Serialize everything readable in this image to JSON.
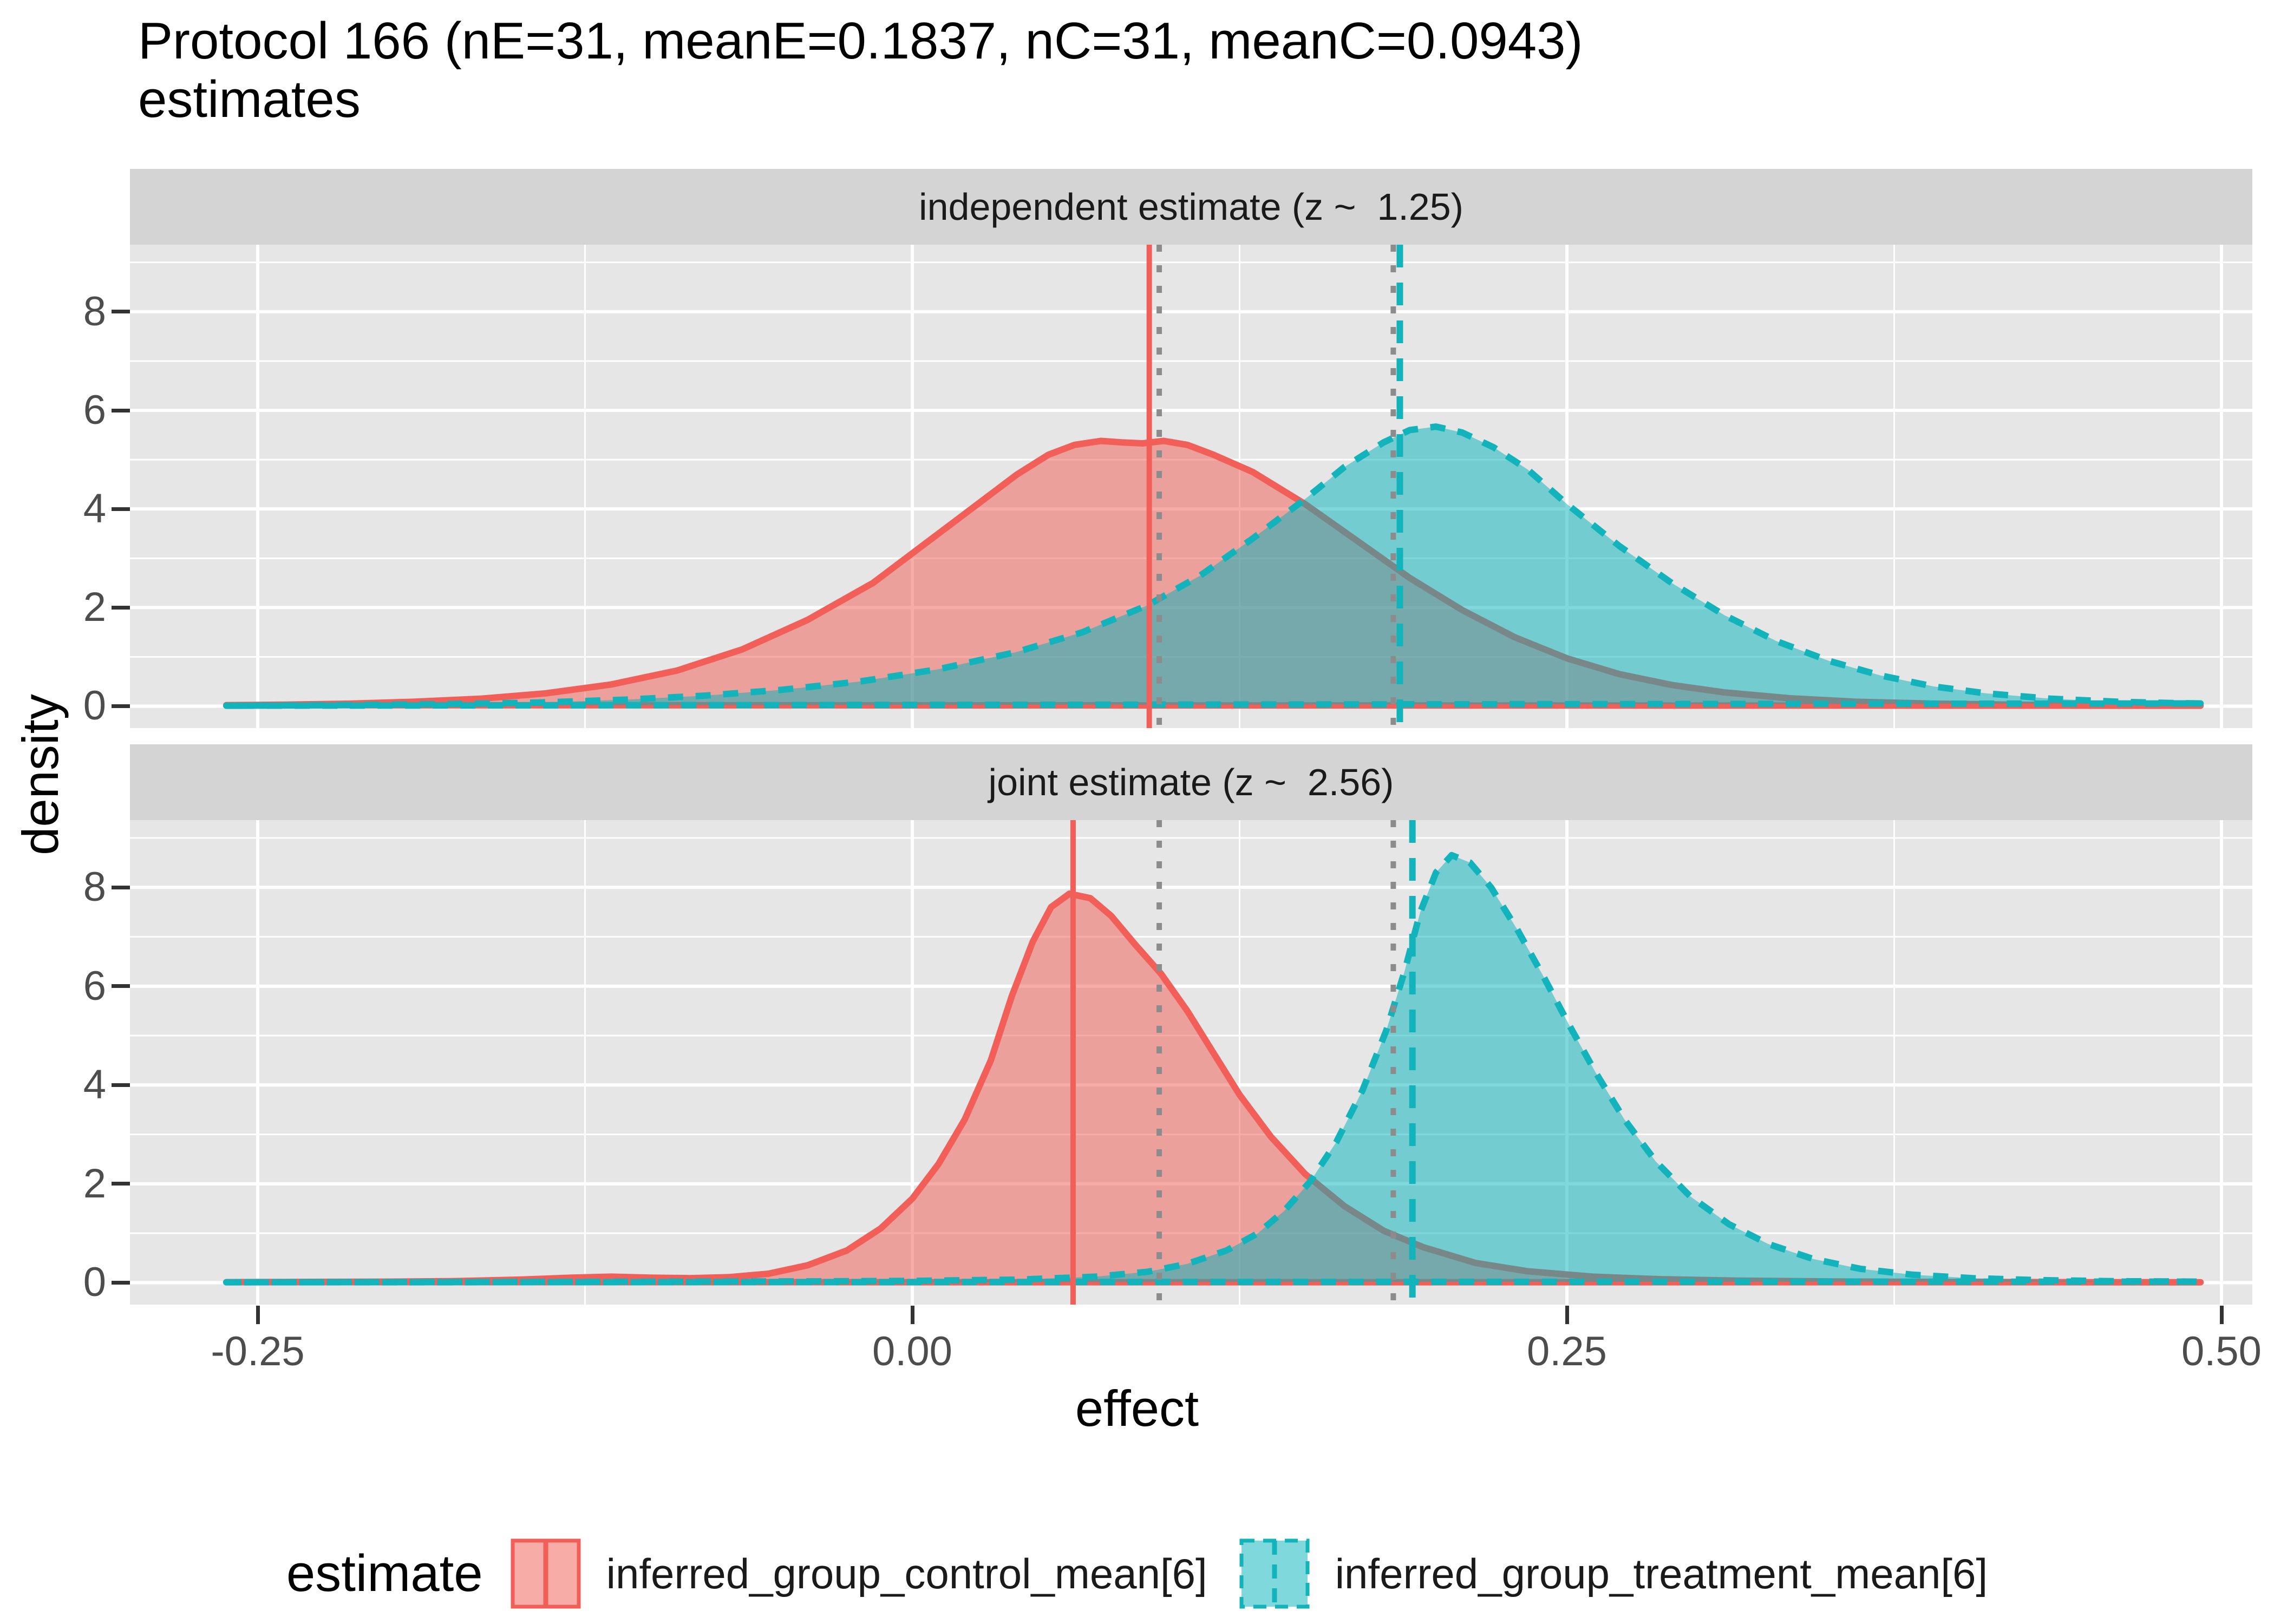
{
  "title": {
    "line1": "Protocol 166 (nE=31, meanE=0.1837, nC=31, meanC=0.0943)",
    "line2": "estimates"
  },
  "axes": {
    "x_label": "effect",
    "y_label": "density",
    "x_ticks": [
      "-0.25",
      "0.00",
      "0.25",
      "0.50"
    ],
    "x_tick_values": [
      -0.25,
      0.0,
      0.25,
      0.5
    ],
    "y_ticks": [
      "8",
      "6",
      "4",
      "2",
      "0"
    ],
    "y_tick_values": [
      8,
      6,
      4,
      2,
      0
    ]
  },
  "colors": {
    "figure_bg": "#FFFFFF",
    "panel_bg": "#E6E6E6",
    "strip_bg": "#D4D4D4",
    "grid": "#FFFFFF",
    "control": "#F15F58",
    "control_fill": "rgba(241,95,88,0.52)",
    "treatment": "#12B3BA",
    "treatment_fill": "rgba(0,178,185,0.50)",
    "reference_gray": "#8C8C8C",
    "tick_mark": "#333333",
    "tick_label": "#4D4D4D",
    "text": "#000000"
  },
  "legend": {
    "title": "estimate",
    "items": [
      {
        "label": "inferred_group_control_mean[6]",
        "color_key": "control",
        "fill_key": "control_fill",
        "linetype": "solid"
      },
      {
        "label": "inferred_group_treatment_mean[6]",
        "color_key": "treatment",
        "fill_key": "treatment_fill",
        "linetype": "dashed"
      }
    ]
  },
  "chart_data": [
    {
      "type": "area",
      "facet_label": "independent estimate (z ~  1.25)",
      "xlabel": "effect",
      "ylabel": "density",
      "xlim": [
        -0.299,
        0.512
      ],
      "ylim": [
        -0.445,
        9.36
      ],
      "x_major_gridlines": [
        -0.25,
        0.0,
        0.25,
        0.5
      ],
      "x_minor_gridlines": [
        -0.125,
        0.125,
        0.375
      ],
      "y_major_gridlines": [
        0,
        2,
        4,
        6,
        8
      ],
      "y_minor_gridlines": [
        1,
        3,
        5,
        7,
        9
      ],
      "series": [
        {
          "name": "inferred_group_control_mean[6]",
          "color_key": "control",
          "fill_key": "control_fill",
          "linetype": "solid",
          "x": [
            -0.262,
            -0.24,
            -0.215,
            -0.19,
            -0.165,
            -0.14,
            -0.115,
            -0.09,
            -0.065,
            -0.04,
            -0.015,
            0.005,
            0.025,
            0.04,
            0.052,
            0.062,
            0.072,
            0.08,
            0.088,
            0.096,
            0.105,
            0.115,
            0.13,
            0.15,
            0.17,
            0.19,
            0.21,
            0.23,
            0.25,
            0.27,
            0.29,
            0.31,
            0.335,
            0.36,
            0.39,
            0.42,
            0.45,
            0.475,
            0.492
          ],
          "y": [
            0.02,
            0.03,
            0.05,
            0.09,
            0.15,
            0.26,
            0.44,
            0.72,
            1.15,
            1.75,
            2.5,
            3.3,
            4.1,
            4.7,
            5.1,
            5.3,
            5.38,
            5.35,
            5.33,
            5.38,
            5.3,
            5.1,
            4.75,
            4.1,
            3.35,
            2.6,
            1.95,
            1.4,
            0.97,
            0.65,
            0.43,
            0.28,
            0.16,
            0.09,
            0.05,
            0.03,
            0.02,
            0.013,
            0.01
          ]
        },
        {
          "name": "inferred_group_treatment_mean[6]",
          "color_key": "treatment",
          "fill_key": "treatment_fill",
          "linetype": "dashed",
          "x": [
            -0.262,
            -0.22,
            -0.18,
            -0.145,
            -0.11,
            -0.08,
            -0.05,
            -0.02,
            0.01,
            0.04,
            0.065,
            0.09,
            0.11,
            0.13,
            0.15,
            0.165,
            0.18,
            0.19,
            0.2,
            0.21,
            0.222,
            0.235,
            0.25,
            0.27,
            0.29,
            0.31,
            0.33,
            0.35,
            0.37,
            0.39,
            0.41,
            0.435,
            0.46,
            0.48,
            0.492
          ],
          "y": [
            0.01,
            0.02,
            0.04,
            0.07,
            0.13,
            0.21,
            0.33,
            0.5,
            0.75,
            1.1,
            1.5,
            2.05,
            2.65,
            3.4,
            4.2,
            4.85,
            5.35,
            5.6,
            5.67,
            5.55,
            5.25,
            4.8,
            4.1,
            3.25,
            2.5,
            1.85,
            1.32,
            0.92,
            0.62,
            0.4,
            0.26,
            0.15,
            0.09,
            0.065,
            0.055
          ]
        }
      ],
      "vlines": [
        {
          "x": 0.0905,
          "style": "solid",
          "color_key": "control"
        },
        {
          "x": 0.0943,
          "style": "dotted",
          "color_key": "reference_gray"
        },
        {
          "x": 0.1837,
          "style": "dotted",
          "color_key": "reference_gray"
        },
        {
          "x": 0.1862,
          "style": "dashed",
          "color_key": "treatment"
        }
      ]
    },
    {
      "type": "area",
      "facet_label": "joint estimate (z ~  2.56)",
      "xlabel": "effect",
      "ylabel": "density",
      "xlim": [
        -0.299,
        0.512
      ],
      "ylim": [
        -0.445,
        9.36
      ],
      "x_major_gridlines": [
        -0.25,
        0.0,
        0.25,
        0.5
      ],
      "x_minor_gridlines": [
        -0.125,
        0.125,
        0.375
      ],
      "y_major_gridlines": [
        0,
        2,
        4,
        6,
        8
      ],
      "y_minor_gridlines": [
        1,
        3,
        5,
        7,
        9
      ],
      "series": [
        {
          "name": "inferred_group_control_mean[6]",
          "color_key": "control",
          "fill_key": "control_fill",
          "linetype": "solid",
          "x": [
            -0.262,
            -0.23,
            -0.2,
            -0.175,
            -0.15,
            -0.13,
            -0.115,
            -0.1,
            -0.085,
            -0.07,
            -0.055,
            -0.04,
            -0.025,
            -0.012,
            0.0,
            0.01,
            0.02,
            0.03,
            0.038,
            0.046,
            0.053,
            0.06,
            0.068,
            0.076,
            0.085,
            0.095,
            0.105,
            0.115,
            0.125,
            0.137,
            0.15,
            0.165,
            0.18,
            0.195,
            0.215,
            0.235,
            0.26,
            0.285,
            0.315,
            0.355,
            0.4,
            0.45,
            0.492
          ],
          "y": [
            0.01,
            0.015,
            0.02,
            0.03,
            0.06,
            0.1,
            0.12,
            0.1,
            0.09,
            0.11,
            0.18,
            0.35,
            0.65,
            1.1,
            1.7,
            2.4,
            3.3,
            4.5,
            5.8,
            6.9,
            7.6,
            7.87,
            7.78,
            7.42,
            6.85,
            6.25,
            5.5,
            4.65,
            3.8,
            2.95,
            2.2,
            1.55,
            1.05,
            0.72,
            0.4,
            0.23,
            0.12,
            0.07,
            0.04,
            0.022,
            0.013,
            0.009,
            0.007
          ]
        },
        {
          "name": "inferred_group_treatment_mean[6]",
          "color_key": "treatment",
          "fill_key": "treatment_fill",
          "linetype": "dashed",
          "x": [
            -0.262,
            -0.2,
            -0.14,
            -0.09,
            -0.04,
            0.0,
            0.04,
            0.07,
            0.09,
            0.105,
            0.12,
            0.132,
            0.142,
            0.152,
            0.162,
            0.172,
            0.181,
            0.188,
            0.194,
            0.2,
            0.206,
            0.213,
            0.221,
            0.231,
            0.241,
            0.251,
            0.261,
            0.272,
            0.284,
            0.297,
            0.312,
            0.327,
            0.344,
            0.362,
            0.382,
            0.405,
            0.43,
            0.46,
            0.492
          ],
          "y": [
            0.008,
            0.01,
            0.015,
            0.02,
            0.025,
            0.035,
            0.06,
            0.12,
            0.22,
            0.38,
            0.65,
            1.0,
            1.45,
            2.05,
            2.85,
            3.9,
            5.1,
            6.3,
            7.5,
            8.3,
            8.65,
            8.5,
            8.0,
            7.15,
            6.2,
            5.2,
            4.25,
            3.3,
            2.45,
            1.75,
            1.18,
            0.78,
            0.48,
            0.28,
            0.16,
            0.09,
            0.05,
            0.028,
            0.02
          ]
        }
      ],
      "vlines": [
        {
          "x": 0.0614,
          "style": "solid",
          "color_key": "control"
        },
        {
          "x": 0.0943,
          "style": "dotted",
          "color_key": "reference_gray"
        },
        {
          "x": 0.1837,
          "style": "dotted",
          "color_key": "reference_gray"
        },
        {
          "x": 0.191,
          "style": "dashed",
          "color_key": "treatment"
        }
      ]
    }
  ]
}
